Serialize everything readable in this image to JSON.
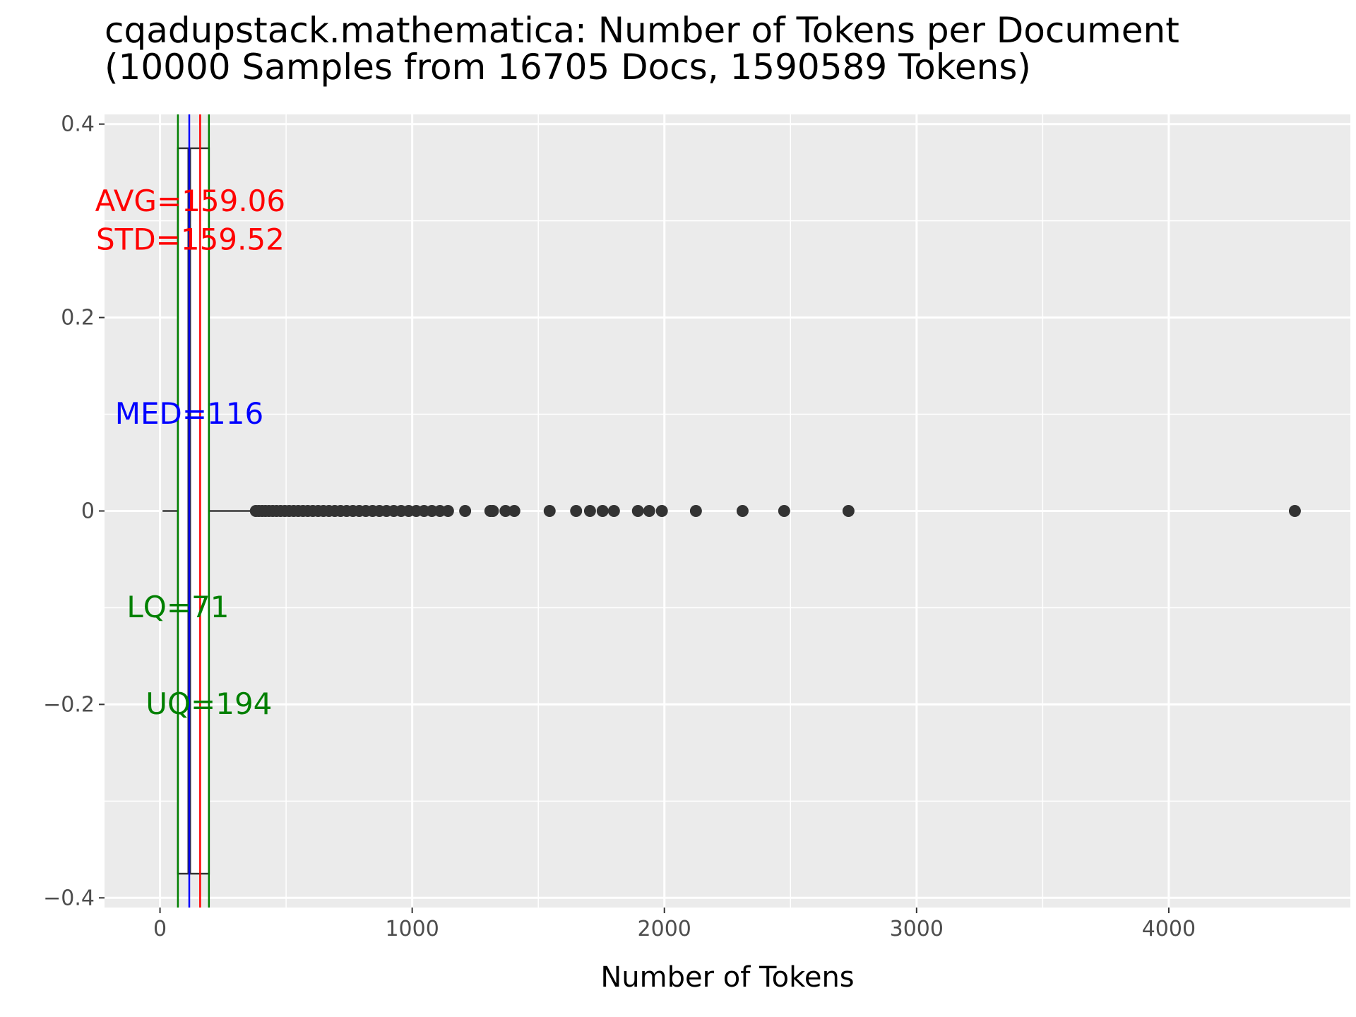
{
  "chart_data": {
    "type": "boxplot",
    "title": "cqadupstack.mathematica: Number of Tokens per Document",
    "subtitle": "(10000 Samples from 16705 Docs, 1590589 Tokens)",
    "xlabel": "Number of Tokens",
    "ylabel": "",
    "xlim": [
      -220,
      4720
    ],
    "ylim": [
      -0.41,
      0.41
    ],
    "x_ticks": [
      0,
      1000,
      2000,
      3000,
      4000
    ],
    "x_tick_labels": [
      "0",
      "1000",
      "2000",
      "3000",
      "4000"
    ],
    "y_ticks": [
      0.4,
      0.2,
      0,
      -0.2,
      -0.4
    ],
    "y_tick_labels": [
      "0.4",
      "0.2",
      "0",
      "−0.2",
      "−0.4"
    ],
    "grid": true,
    "box": {
      "y": 0,
      "whisker_low": 10,
      "q1": 71,
      "median": 116,
      "q3": 194,
      "whisker_high": 378,
      "half_width": 0.375
    },
    "outliers": [
      380,
      392,
      405,
      418,
      432,
      447,
      462,
      478,
      495,
      512,
      530,
      548,
      567,
      586,
      606,
      627,
      648,
      670,
      693,
      716,
      740,
      765,
      790,
      816,
      843,
      870,
      898,
      927,
      956,
      986,
      1016,
      1047,
      1078,
      1110,
      1142,
      1210,
      1310,
      1320,
      1370,
      1405,
      1545,
      1650,
      1705,
      1755,
      1800,
      1895,
      1940,
      1990,
      2125,
      2310,
      2475,
      2730,
      4500
    ],
    "reference_lines": [
      {
        "name": "lq",
        "value": 71,
        "color": "#008000"
      },
      {
        "name": "uq",
        "value": 194,
        "color": "#008000"
      },
      {
        "name": "med",
        "value": 116,
        "color": "#0000ff"
      },
      {
        "name": "avg",
        "value": 159.06,
        "color": "#ff0000"
      }
    ],
    "annotations": [
      {
        "name": "avg-label",
        "text": "AVG=159.06",
        "x": 120,
        "y": 0.321,
        "color": "#ff0000"
      },
      {
        "name": "std-label",
        "text": "STD=159.52",
        "x": 120,
        "y": 0.281,
        "color": "#ff0000"
      },
      {
        "name": "med-label",
        "text": "MED=116",
        "x": 116,
        "y": 0.101,
        "color": "#0000ff"
      },
      {
        "name": "lq-label",
        "text": "LQ=71",
        "x": 71,
        "y": -0.099,
        "color": "#008000"
      },
      {
        "name": "uq-label",
        "text": "UQ=194",
        "x": 194,
        "y": -0.199,
        "color": "#008000"
      }
    ],
    "colors": {
      "panel": "#ebebeb",
      "grid": "#ffffff",
      "points": "#333333",
      "box": "#333333"
    }
  }
}
